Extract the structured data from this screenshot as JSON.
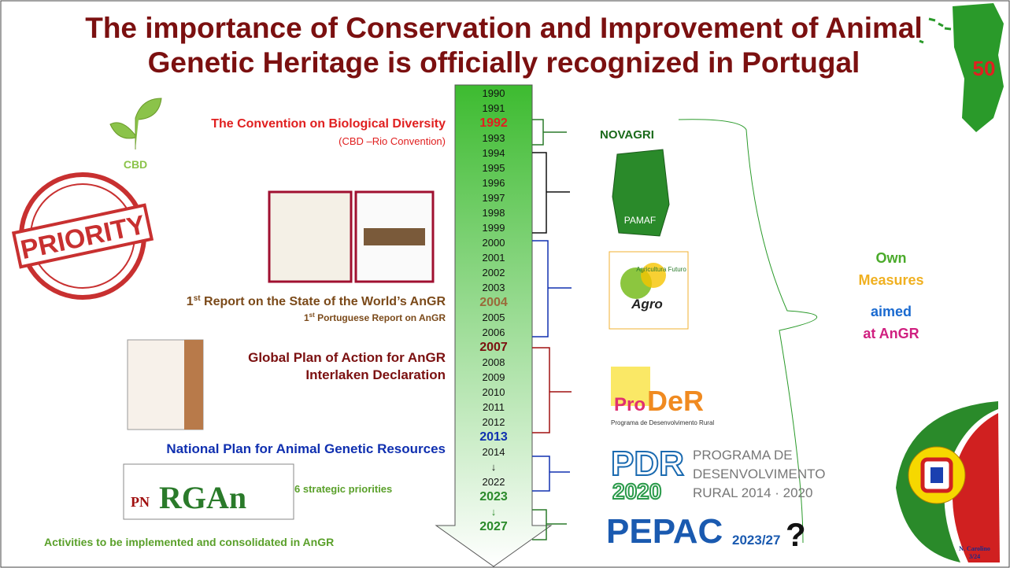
{
  "title": {
    "line1": "The importance of Conservation and Improvement of Animal",
    "line2": "Genetic Heritage is officially recognized in Portugal"
  },
  "badge": "50",
  "timeline": [
    {
      "label": "1990"
    },
    {
      "label": "1991"
    },
    {
      "label": "1992",
      "color": "#e02020",
      "bold": true
    },
    {
      "label": "1993"
    },
    {
      "label": "1994"
    },
    {
      "label": "1995"
    },
    {
      "label": "1996"
    },
    {
      "label": "1997"
    },
    {
      "label": "1998"
    },
    {
      "label": "1999"
    },
    {
      "label": "2000"
    },
    {
      "label": "2001"
    },
    {
      "label": "2002"
    },
    {
      "label": "2003"
    },
    {
      "label": "2004",
      "color": "#9a6a3a",
      "bold": true
    },
    {
      "label": "2005"
    },
    {
      "label": "2006"
    },
    {
      "label": "2007",
      "color": "#7b1010",
      "bold": true
    },
    {
      "label": "2008"
    },
    {
      "label": "2009"
    },
    {
      "label": "2010"
    },
    {
      "label": "2011"
    },
    {
      "label": "2012"
    },
    {
      "label": "2013",
      "color": "#1030b0",
      "bold": true
    },
    {
      "label": "2014"
    },
    {
      "label": "↓"
    },
    {
      "label": "2022"
    },
    {
      "label": "2023",
      "color": "#2a8a2a",
      "bold": true
    },
    {
      "label": "↓",
      "color": "#2a8a2a"
    },
    {
      "label": "2027",
      "color": "#2a8a2a",
      "bold": true
    }
  ],
  "left": {
    "cbd": {
      "title": "The Convention on Biological Diversity",
      "subtitle": "(CBD –Rio Convention)",
      "logo": "CBD"
    },
    "stamp": "PRIORITY",
    "report": {
      "num": "1",
      "sup": "st",
      "title": " Report on the State of the World’s AnGR",
      "num2": "1",
      "sup2": "st",
      "subtitle": " Portuguese Report on AnGR"
    },
    "gpa": {
      "line1": "Global Plan of Action for AnGR",
      "line2": "Interlaken Declaration"
    },
    "national": "National Plan for Animal Genetic Resources",
    "pnrgan": {
      "pn": "PN",
      "rgan": "RGAn",
      "note": "6 strategic priorities"
    },
    "activities": "Activities to be implemented and consolidated in AnGR"
  },
  "right": {
    "novagri": "NOVAGRI",
    "pamaf": "PAMAF",
    "agro": {
      "small": "Agricultura Futuro",
      "name": "Agro"
    },
    "proder": {
      "pro": "Pro",
      "der": "DeR",
      "sub": "Programa de Desenvolvimento Rural"
    },
    "pdr": {
      "logo": "PDR",
      "year": "2020",
      "l1": "PROGRAMA DE",
      "l2": "DESENVOLVIMENTO",
      "l3": "RURAL 2014 · 2020"
    },
    "pepac": {
      "name": "PEPAC",
      "years": "2023/27",
      "q": "?"
    },
    "measures": {
      "own": "Own",
      "measures": "Measures",
      "aimed": "aimed",
      "at": "at AnGR"
    }
  },
  "footer": {
    "author": "N. Carolino",
    "page": "3/24"
  }
}
